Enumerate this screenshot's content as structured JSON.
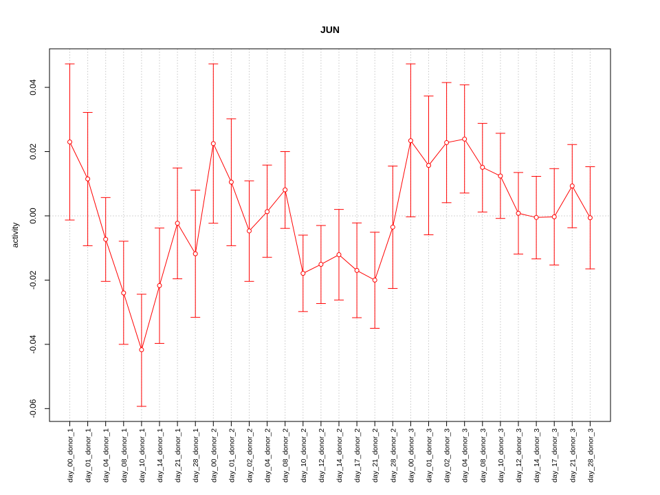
{
  "chart_data": {
    "type": "line",
    "title": "JUN",
    "xlabel": "",
    "ylabel": "activity",
    "ylim": [
      -0.064,
      0.052
    ],
    "yticks": [
      -0.06,
      -0.04,
      -0.02,
      0.0,
      0.02,
      0.04
    ],
    "ytick_labels": [
      "-0.06",
      "-0.04",
      "-0.02",
      "0.00",
      "0.02",
      "0.04"
    ],
    "grid": true,
    "color": "#ff0000",
    "categories": [
      "day_00_donor_1",
      "day_01_donor_1",
      "day_04_donor_1",
      "day_08_donor_1",
      "day_10_donor_1",
      "day_14_donor_1",
      "day_21_donor_1",
      "day_28_donor_1",
      "day_00_donor_2",
      "day_01_donor_2",
      "day_02_donor_2",
      "day_04_donor_2",
      "day_08_donor_2",
      "day_10_donor_2",
      "day_12_donor_2",
      "day_14_donor_2",
      "day_17_donor_2",
      "day_21_donor_2",
      "day_28_donor_2",
      "day_00_donor_3",
      "day_01_donor_3",
      "day_02_donor_3",
      "day_04_donor_3",
      "day_08_donor_3",
      "day_10_donor_3",
      "day_12_donor_3",
      "day_14_donor_3",
      "day_17_donor_3",
      "day_21_donor_3",
      "day_28_donor_3"
    ],
    "values": [
      0.023,
      0.0115,
      -0.0073,
      -0.024,
      -0.0417,
      -0.0217,
      -0.0023,
      -0.0118,
      0.0225,
      0.0105,
      -0.0047,
      0.0013,
      0.0081,
      -0.0179,
      -0.0151,
      -0.0121,
      -0.017,
      -0.02,
      -0.0035,
      0.0234,
      0.0157,
      0.0228,
      0.0239,
      0.0151,
      0.0124,
      0.0008,
      -0.0005,
      -0.0003,
      0.0093,
      -0.0006
    ],
    "upper": [
      0.0473,
      0.0322,
      0.0057,
      -0.0079,
      -0.0244,
      -0.0038,
      0.0149,
      0.008,
      0.0473,
      0.0302,
      0.0109,
      0.0158,
      0.02,
      -0.006,
      -0.003,
      0.002,
      -0.0022,
      -0.0051,
      0.0155,
      0.0473,
      0.0373,
      0.0415,
      0.0408,
      0.0288,
      0.0257,
      0.0135,
      0.0123,
      0.0147,
      0.0222,
      0.0153
    ],
    "lower": [
      -0.0013,
      -0.0093,
      -0.0204,
      -0.04,
      -0.0593,
      -0.0397,
      -0.0196,
      -0.0316,
      -0.0023,
      -0.0093,
      -0.0204,
      -0.0129,
      -0.0039,
      -0.0298,
      -0.0273,
      -0.0262,
      -0.0317,
      -0.035,
      -0.0226,
      -0.0003,
      -0.0059,
      0.0041,
      0.0071,
      0.0012,
      -0.0008,
      -0.0119,
      -0.0134,
      -0.0153,
      -0.0037,
      -0.0165
    ]
  }
}
